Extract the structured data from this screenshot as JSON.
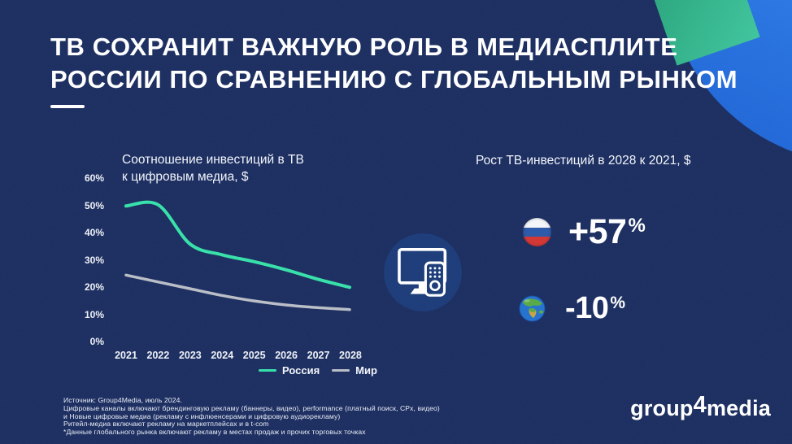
{
  "slide": {
    "title_line1": "ТВ СОХРАНИТ ВАЖНУЮ РОЛЬ В МЕДИАСПЛИТЕ",
    "title_line2": "РОССИИ ПО СРАВНЕНИЮ С ГЛОБАЛЬНЫМ РЫНКОМ"
  },
  "chart": {
    "title_line1": "Соотношение инвестиций в ТВ",
    "title_line2": "к цифровым медиа, $"
  },
  "chart_data": {
    "type": "line",
    "title": "Соотношение инвестиций в ТВ к цифровым медиа, $",
    "x": [
      "2021",
      "2022",
      "2023",
      "2024",
      "2025",
      "2026",
      "2027",
      "2028"
    ],
    "series": [
      {
        "name": "Россия",
        "color": "#35e0a8",
        "values": [
          50,
          50.5,
          36,
          32,
          29.5,
          26.5,
          23,
          20
        ]
      },
      {
        "name": "Мир",
        "color": "#b9bdc6",
        "values": [
          24.5,
          22,
          19.5,
          17,
          15,
          13.5,
          12.5,
          11.8
        ]
      }
    ],
    "xlabel": "",
    "ylabel": "",
    "ylim": [
      0,
      60
    ],
    "yticks": [
      "0%",
      "10%",
      "20%",
      "30%",
      "40%",
      "50%",
      "60%"
    ],
    "grid": false,
    "legend_position": "bottom-right"
  },
  "stats": {
    "heading": "Рост ТВ-инвестиций в 2028 к 2021, $",
    "items": [
      {
        "icon": "russia-flag",
        "value": "+57",
        "unit": "%"
      },
      {
        "icon": "globe",
        "value": "-10",
        "unit": "%"
      }
    ]
  },
  "footer": {
    "lines": [
      "Источник: Group4Media, июль 2024.",
      "Цифровые каналы включают брендинговую рекламу (баннеры, видео), performance (платный поиск, CPx, видео)",
      "и Новые цифровые медиа (рекламу с инфлюенсерами и цифровую аудиорекламу)",
      "Ритейл-медиа включают рекламу на маркетплейсах и в t-com",
      "*Данные глобального рынка включают рекламу в местах продаж и прочих торговых точках"
    ]
  },
  "logo": {
    "part1": "group",
    "part2": "4",
    "part3": "media"
  },
  "colors": {
    "background": "#1a2c5f",
    "accent_teal": "#35e0a8",
    "line_world_gray": "#b9bdc6",
    "deco_blue_circle": "#2e7ee8",
    "deco_teal_square": "#34b88d",
    "tv_badge_blue": "#1a3a78"
  }
}
